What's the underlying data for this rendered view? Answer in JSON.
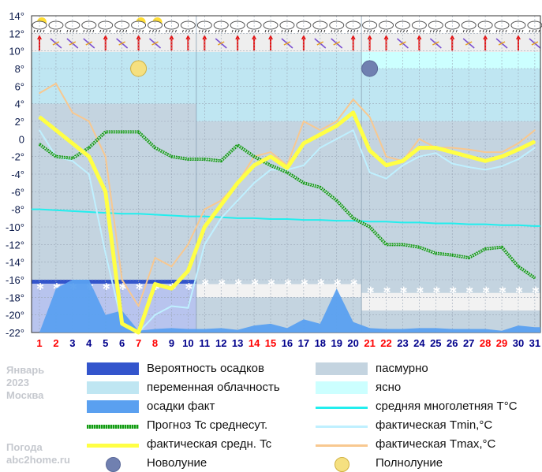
{
  "info": {
    "month": "Январь",
    "year": "2023",
    "city": "Москва",
    "site_line1": "Погода",
    "site_line2": "abc2home.ru"
  },
  "colors": {
    "precip_prob": "#3355cc",
    "variable": "#bfe6f2",
    "precip_fact": "#5aa0f0",
    "forecast": "#119911",
    "actual_avg": "#ffff44",
    "overcast": "#c4d4e0",
    "clear": "#ccffff",
    "normal": "#22eeee",
    "tmin": "#bff0ff",
    "tmax": "#f8c890",
    "weekend": "#ff0000",
    "weekday": "#00008b"
  },
  "legend": [
    {
      "key": "precip_prob",
      "label": "Вероятность осадков"
    },
    {
      "key": "overcast",
      "label": "пасмурно"
    },
    {
      "key": "variable",
      "label": "переменная облачность"
    },
    {
      "key": "clear",
      "label": "ясно"
    },
    {
      "key": "precip_fact",
      "label": "осадки факт"
    },
    {
      "key": "normal",
      "label": "средняя многолетняя T°C"
    },
    {
      "key": "forecast",
      "label": "Прогноз Tc среднесут."
    },
    {
      "key": "tmin",
      "label": "фактическая Tmin,°C"
    },
    {
      "key": "actual_avg",
      "label": "фактическая средн. Tc"
    },
    {
      "key": "tmax",
      "label": "фактическая Tmax,°C"
    },
    {
      "key": "new_moon",
      "label": "Новолуние"
    },
    {
      "key": "full_moon",
      "label": "Полнолуние"
    }
  ],
  "chart_data": {
    "type": "line",
    "ylim": [
      -22,
      14
    ],
    "yticks": [
      14,
      12,
      10,
      8,
      6,
      4,
      2,
      0,
      -2,
      -4,
      -6,
      -8,
      -10,
      -12,
      -14,
      -16,
      -18,
      -20,
      -22
    ],
    "ytick_labels": [
      "14°",
      "12°",
      "10°",
      "8°",
      "6°",
      "4°",
      "2°",
      "0",
      "-2°",
      "-4°",
      "-6°",
      "-8°",
      "-10°",
      "-12°",
      "-14°",
      "-16°",
      "-18°",
      "-20°",
      "-22°"
    ],
    "x": [
      1,
      2,
      3,
      4,
      5,
      6,
      7,
      8,
      9,
      10,
      11,
      12,
      13,
      14,
      15,
      16,
      17,
      18,
      19,
      20,
      21,
      22,
      23,
      24,
      25,
      26,
      27,
      28,
      29,
      30,
      31
    ],
    "weekend_days": [
      1,
      2,
      7,
      8,
      14,
      15,
      21,
      22,
      28,
      29
    ],
    "series": [
      {
        "name": "фактическая Tmax,°C",
        "key": "tmax",
        "values": [
          5.2,
          6.3,
          3,
          2,
          -2,
          -16,
          -19,
          -13.5,
          -14.5,
          -12,
          -8,
          -7,
          -5,
          -2,
          -1.5,
          -3,
          2,
          1,
          2,
          4.5,
          2.5,
          -2,
          -2.5,
          0,
          -1,
          -1,
          -1.2,
          -1.5,
          -1.5,
          -0.5,
          1
        ]
      },
      {
        "name": "фактическая Tmin,°C",
        "key": "tmin",
        "values": [
          1,
          -2,
          -2.5,
          -4,
          -13,
          -21,
          -22,
          -20,
          -19,
          -19.2,
          -12,
          -9,
          -7,
          -5,
          -3.5,
          -3.5,
          -3,
          -1,
          0,
          1,
          -3.8,
          -4.5,
          -3,
          -2,
          -1.6,
          -2.8,
          -3.2,
          -3.5,
          -3.1,
          -2.3,
          -1
        ]
      },
      {
        "name": "фактическая средн. Tc",
        "key": "actual_avg",
        "values": [
          2.5,
          1,
          -0.5,
          -2,
          -6,
          -21,
          -22,
          -16.5,
          -17,
          -15,
          -10,
          -7.5,
          -5,
          -3,
          -2,
          -3.3,
          -0.5,
          0.5,
          1.5,
          3,
          -1.3,
          -3,
          -2.5,
          -1,
          -1,
          -1.5,
          -2,
          -2.5,
          -2,
          -1.2,
          -0.3
        ]
      },
      {
        "name": "Прогноз Tc среднесут.",
        "key": "forecast",
        "values": [
          -0.6,
          -2,
          -2.2,
          -1,
          0.8,
          0.8,
          0.8,
          -1,
          -2,
          -2.3,
          -2.3,
          -2.5,
          -0.7,
          -2,
          -3,
          -3.8,
          -5,
          -5.5,
          -7,
          -9,
          -10,
          -12,
          -12,
          -12.3,
          -13,
          -13.2,
          -13.5,
          -12.5,
          -12.3,
          -14.5,
          -15.8
        ]
      },
      {
        "name": "средняя многолетняя T°C",
        "key": "normal",
        "values": [
          -8,
          -8.1,
          -8.2,
          -8.3,
          -8.4,
          -8.5,
          -8.5,
          -8.6,
          -8.7,
          -8.8,
          -8.8,
          -8.9,
          -9,
          -9,
          -9.1,
          -9.1,
          -9.2,
          -9.2,
          -9.3,
          -9.3,
          -9.4,
          -9.4,
          -9.5,
          -9.5,
          -9.6,
          -9.6,
          -9.7,
          -9.7,
          -9.8,
          -9.8,
          -9.9
        ]
      },
      {
        "name": "осадки факт",
        "key": "precip_fact",
        "values": [
          -22,
          -17,
          -16,
          -16,
          -20,
          -19.5,
          -21.8,
          -21.6,
          -21.5,
          -21.6,
          -21.6,
          -21.5,
          -21.7,
          -21.2,
          -21,
          -21.5,
          -20.5,
          -21,
          -17,
          -20.8,
          -21.5,
          -21.6,
          -21.6,
          -21.5,
          -21.5,
          -21.6,
          -21.6,
          -21.6,
          -21.8,
          -21.2,
          -21.4
        ]
      }
    ],
    "precip_probability_band": {
      "days": [
        1,
        10
      ],
      "top": -16,
      "bottom": -22
    },
    "cloud_bands": [
      {
        "kind": "variable",
        "from_day": 1,
        "to_day": 10,
        "top": 10,
        "bottom": 4
      },
      {
        "kind": "overcast",
        "from_day": 1,
        "to_day": 10,
        "top": 4,
        "bottom": -22
      },
      {
        "kind": "variable",
        "from_day": 11,
        "to_day": 20,
        "top": 10,
        "bottom": 2
      },
      {
        "kind": "overcast",
        "from_day": 11,
        "to_day": 31,
        "top": 2,
        "bottom": -22
      },
      {
        "kind": "clear",
        "from_day": 21,
        "to_day": 31,
        "top": 10,
        "bottom": 8
      },
      {
        "kind": "variable",
        "from_day": 21,
        "to_day": 31,
        "top": 8,
        "bottom": 2
      }
    ],
    "moons": [
      {
        "type": "full_moon",
        "day": 7,
        "value": 8
      },
      {
        "type": "new_moon",
        "day": 21,
        "value": 8
      }
    ],
    "wind_dirs_red_up_days": [
      1,
      5,
      7,
      9,
      10,
      11,
      13,
      14,
      15,
      17,
      20,
      21,
      22,
      24,
      26,
      28,
      30
    ]
  }
}
